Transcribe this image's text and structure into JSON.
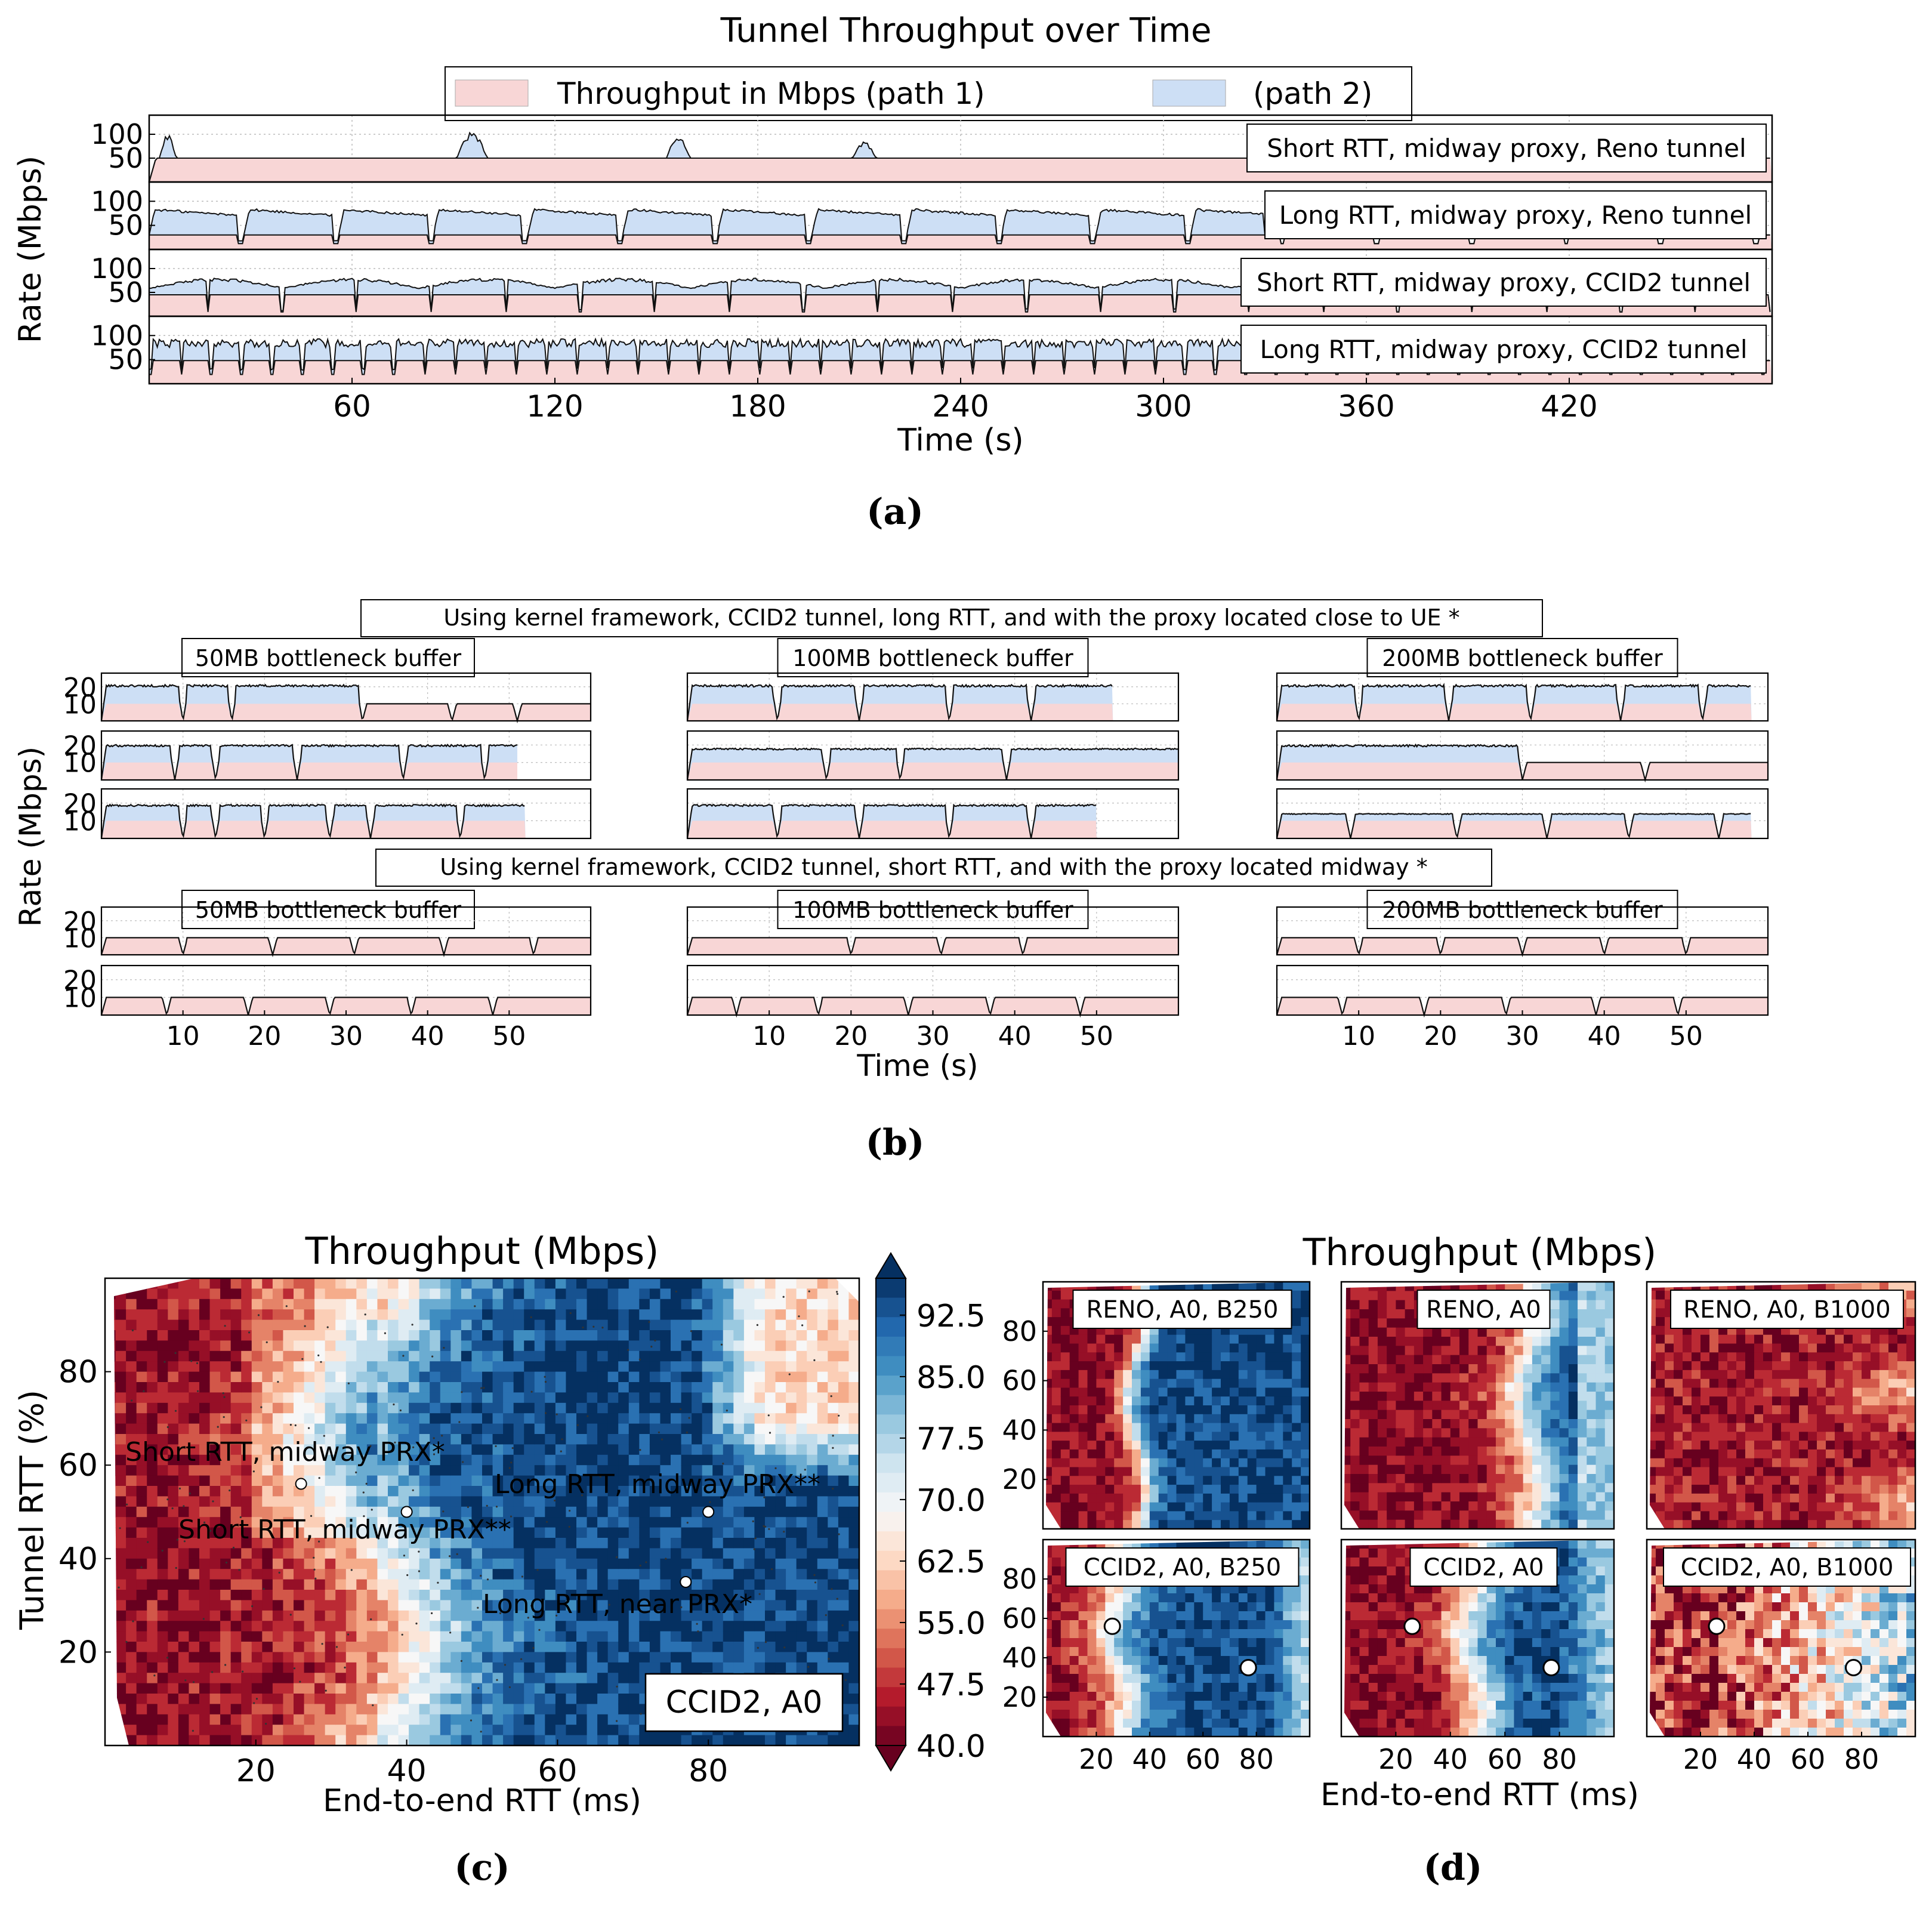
{
  "colors": {
    "path1": "#f8d6d6",
    "path2": "#cddff5",
    "line": "#111111",
    "grid": "#bbbbbb",
    "colormap": [
      "#67001f",
      "#b2182b",
      "#d6604d",
      "#f4a582",
      "#fddbc7",
      "#f7f7f7",
      "#d1e5f0",
      "#92c5de",
      "#4393c3",
      "#2166ac",
      "#053061"
    ]
  },
  "chart_data": [
    {
      "id": "a",
      "type": "area",
      "panel_label": "(a)",
      "title": "Tunnel Throughput over Time",
      "xlabel": "Time (s)",
      "ylabel": "Rate (Mbps)",
      "xlim": [
        0,
        480
      ],
      "ylim": [
        0,
        140
      ],
      "xticks": [
        60,
        120,
        180,
        240,
        300,
        360,
        420
      ],
      "yticks": [
        50,
        100
      ],
      "legend": [
        {
          "label": "Throughput in Mbps (path 1)",
          "color": "#f8d6d6"
        },
        {
          "label": "(path 2)",
          "color": "#cddff5"
        }
      ],
      "series": [
        {
          "label": "Short RTT, midway proxy, Reno tunnel",
          "end_time": 480,
          "path1_level": 50,
          "path2_bursts": [
            [
              3,
              8,
              45
            ],
            [
              91,
              100,
              48
            ],
            [
              153,
              160,
              40
            ],
            [
              208,
              215,
              30
            ]
          ],
          "style": "bursts"
        },
        {
          "label": "Long RTT, midway proxy, Reno tunnel",
          "end_time": 480,
          "path1_level": 30,
          "path2_level": 85,
          "period": 28,
          "style": "sawtooth"
        },
        {
          "label": "Short RTT, midway proxy, CCID2 tunnel",
          "end_time": 480,
          "path1_level": 45,
          "path2_level": 78,
          "period": 40,
          "style": "waves"
        },
        {
          "label": "Long RTT, midway proxy, CCID2 tunnel",
          "end_time": 480,
          "path1_level": 48,
          "path2_level": 98,
          "period": 9,
          "style": "dense"
        }
      ]
    },
    {
      "id": "b",
      "type": "area",
      "panel_label": "(b)",
      "xlabel": "Time (s)",
      "ylabel": "Rate (Mbps)",
      "xlim": [
        0,
        60
      ],
      "ylim": [
        0,
        28
      ],
      "xticks": [
        10,
        20,
        30,
        40,
        50
      ],
      "yticks": [
        10,
        20
      ],
      "group_titles": [
        "Using kernel framework, CCID2 tunnel, long RTT, and with the proxy located close to UE *",
        "Using kernel framework, CCID2 tunnel, short RTT, and with the proxy located midway *"
      ],
      "column_titles": [
        "50MB bottleneck buffer",
        "100MB bottleneck buffer",
        "200MB bottleneck buffer"
      ],
      "subplots": [
        {
          "group": 0,
          "col": 0,
          "row": 0,
          "end": 60,
          "drops": [
            10,
            16,
            32,
            43,
            51
          ],
          "path2_end": 32,
          "p1": 10,
          "p2": 21
        },
        {
          "group": 0,
          "col": 0,
          "row": 1,
          "end": 51,
          "drops": [
            9,
            14,
            24,
            37,
            47
          ],
          "path2_end": 51,
          "p1": 10,
          "p2": 20
        },
        {
          "group": 0,
          "col": 0,
          "row": 2,
          "end": 52,
          "drops": [
            10,
            14,
            20,
            28,
            33,
            44
          ],
          "path2_end": 52,
          "p1": 10,
          "p2": 19
        },
        {
          "group": 0,
          "col": 1,
          "row": 0,
          "end": 52,
          "drops": [
            11,
            21,
            32,
            42
          ],
          "path2_end": 52,
          "p1": 10,
          "p2": 21
        },
        {
          "group": 0,
          "col": 1,
          "row": 1,
          "end": 60,
          "drops": [
            17,
            26,
            39
          ],
          "path2_end": 60,
          "p1": 10,
          "p2": 18
        },
        {
          "group": 0,
          "col": 1,
          "row": 2,
          "end": 50,
          "drops": [
            11,
            21,
            32,
            42
          ],
          "path2_end": 50,
          "p1": 10,
          "p2": 19
        },
        {
          "group": 0,
          "col": 2,
          "row": 0,
          "end": 58,
          "drops": [
            10,
            21,
            31,
            42,
            52
          ],
          "path2_end": 58,
          "p1": 10,
          "p2": 21
        },
        {
          "group": 0,
          "col": 2,
          "row": 1,
          "end": 60,
          "drops": [
            30,
            45
          ],
          "path2_end": 30,
          "p1": 10,
          "p2": 20
        },
        {
          "group": 0,
          "col": 2,
          "row": 2,
          "end": 58,
          "drops": [
            9,
            22,
            33,
            43,
            54
          ],
          "path2_end": 58,
          "p1": 10,
          "p2": 14
        },
        {
          "group": 1,
          "col": 0,
          "row": 0,
          "end": 60,
          "drops": [
            10,
            21,
            31,
            42,
            53
          ],
          "path2_end": 0,
          "p1": 10,
          "p2": 0
        },
        {
          "group": 1,
          "col": 0,
          "row": 1,
          "end": 60,
          "drops": [
            8,
            18,
            28,
            38,
            48
          ],
          "path2_end": 0,
          "p1": 10,
          "p2": 0
        },
        {
          "group": 1,
          "col": 1,
          "row": 0,
          "end": 60,
          "drops": [
            20,
            31,
            41
          ],
          "path2_end": 20,
          "p1": 10,
          "p2": 10
        },
        {
          "group": 1,
          "col": 1,
          "row": 1,
          "end": 60,
          "drops": [
            6,
            16,
            27,
            37,
            48
          ],
          "path2_end": 0,
          "p1": 10,
          "p2": 0
        },
        {
          "group": 1,
          "col": 2,
          "row": 0,
          "end": 60,
          "drops": [
            10,
            20,
            30,
            40,
            50
          ],
          "path2_end": 0,
          "p1": 10,
          "p2": 0
        },
        {
          "group": 1,
          "col": 2,
          "row": 1,
          "end": 60,
          "drops": [
            8,
            18,
            28,
            39,
            49
          ],
          "path2_end": 0,
          "p1": 10,
          "p2": 0
        }
      ]
    },
    {
      "id": "c",
      "type": "heatmap",
      "panel_label": "(c)",
      "title": "Throughput (Mbps)",
      "xlabel": "End-to-end RTT (ms)",
      "ylabel": "Tunnel RTT (%)",
      "xlim": [
        0,
        100
      ],
      "ylim": [
        0,
        100
      ],
      "xticks": [
        20,
        40,
        60,
        80
      ],
      "yticks": [
        20,
        40,
        60,
        80
      ],
      "colorbar_ticks": [
        40.0,
        47.5,
        55.0,
        62.5,
        70.0,
        77.5,
        85.0,
        92.5
      ],
      "colorbar_labels": [
        "40.0",
        "47.5",
        "55.0",
        "62.5",
        "70.0",
        "77.5",
        "85.0",
        "92.5"
      ],
      "vmin": 40,
      "vmax": 97,
      "inset_label": "CCID2, A0",
      "annotations": [
        {
          "text": "Short RTT, midway PRX*",
          "x": 26,
          "y": 56
        },
        {
          "text": "Short RTT, midway PRX**",
          "x": 40,
          "y": 50
        },
        {
          "text": "Long RTT, midway PRX**",
          "x": 80,
          "y": 50
        },
        {
          "text": "Long RTT, near PRX*",
          "x": 77,
          "y": 35
        }
      ]
    },
    {
      "id": "d",
      "type": "heatmap",
      "panel_label": "(d)",
      "title": "Throughput (Mbps)",
      "xlabel": "End-to-end RTT (ms)",
      "xlim": [
        0,
        100
      ],
      "ylim": [
        0,
        100
      ],
      "xticks": [
        20,
        40,
        60,
        80
      ],
      "yticks": [
        20,
        40,
        60,
        80
      ],
      "panels": [
        {
          "label": "RENO, A0, B250",
          "row": 0,
          "col": 0,
          "transition": 35,
          "variant": "reno250",
          "markers": []
        },
        {
          "label": "RENO, A0",
          "row": 0,
          "col": 1,
          "transition": 68,
          "variant": "reno",
          "markers": []
        },
        {
          "label": "RENO, A0, B1000",
          "row": 0,
          "col": 2,
          "transition": 200,
          "variant": "reno1000",
          "markers": []
        },
        {
          "label": "CCID2, A0, B250",
          "row": 1,
          "col": 0,
          "transition": 28,
          "variant": "ccid250",
          "markers": [
            [
              26,
              56
            ],
            [
              77,
              35
            ]
          ]
        },
        {
          "label": "CCID2, A0",
          "row": 1,
          "col": 1,
          "transition": 48,
          "variant": "ccid",
          "markers": [
            [
              26,
              56
            ],
            [
              77,
              35
            ]
          ]
        },
        {
          "label": "CCID2, A0, B1000",
          "row": 1,
          "col": 2,
          "transition": 82,
          "variant": "ccid1000",
          "markers": [
            [
              26,
              56
            ],
            [
              77,
              35
            ]
          ]
        }
      ]
    }
  ]
}
